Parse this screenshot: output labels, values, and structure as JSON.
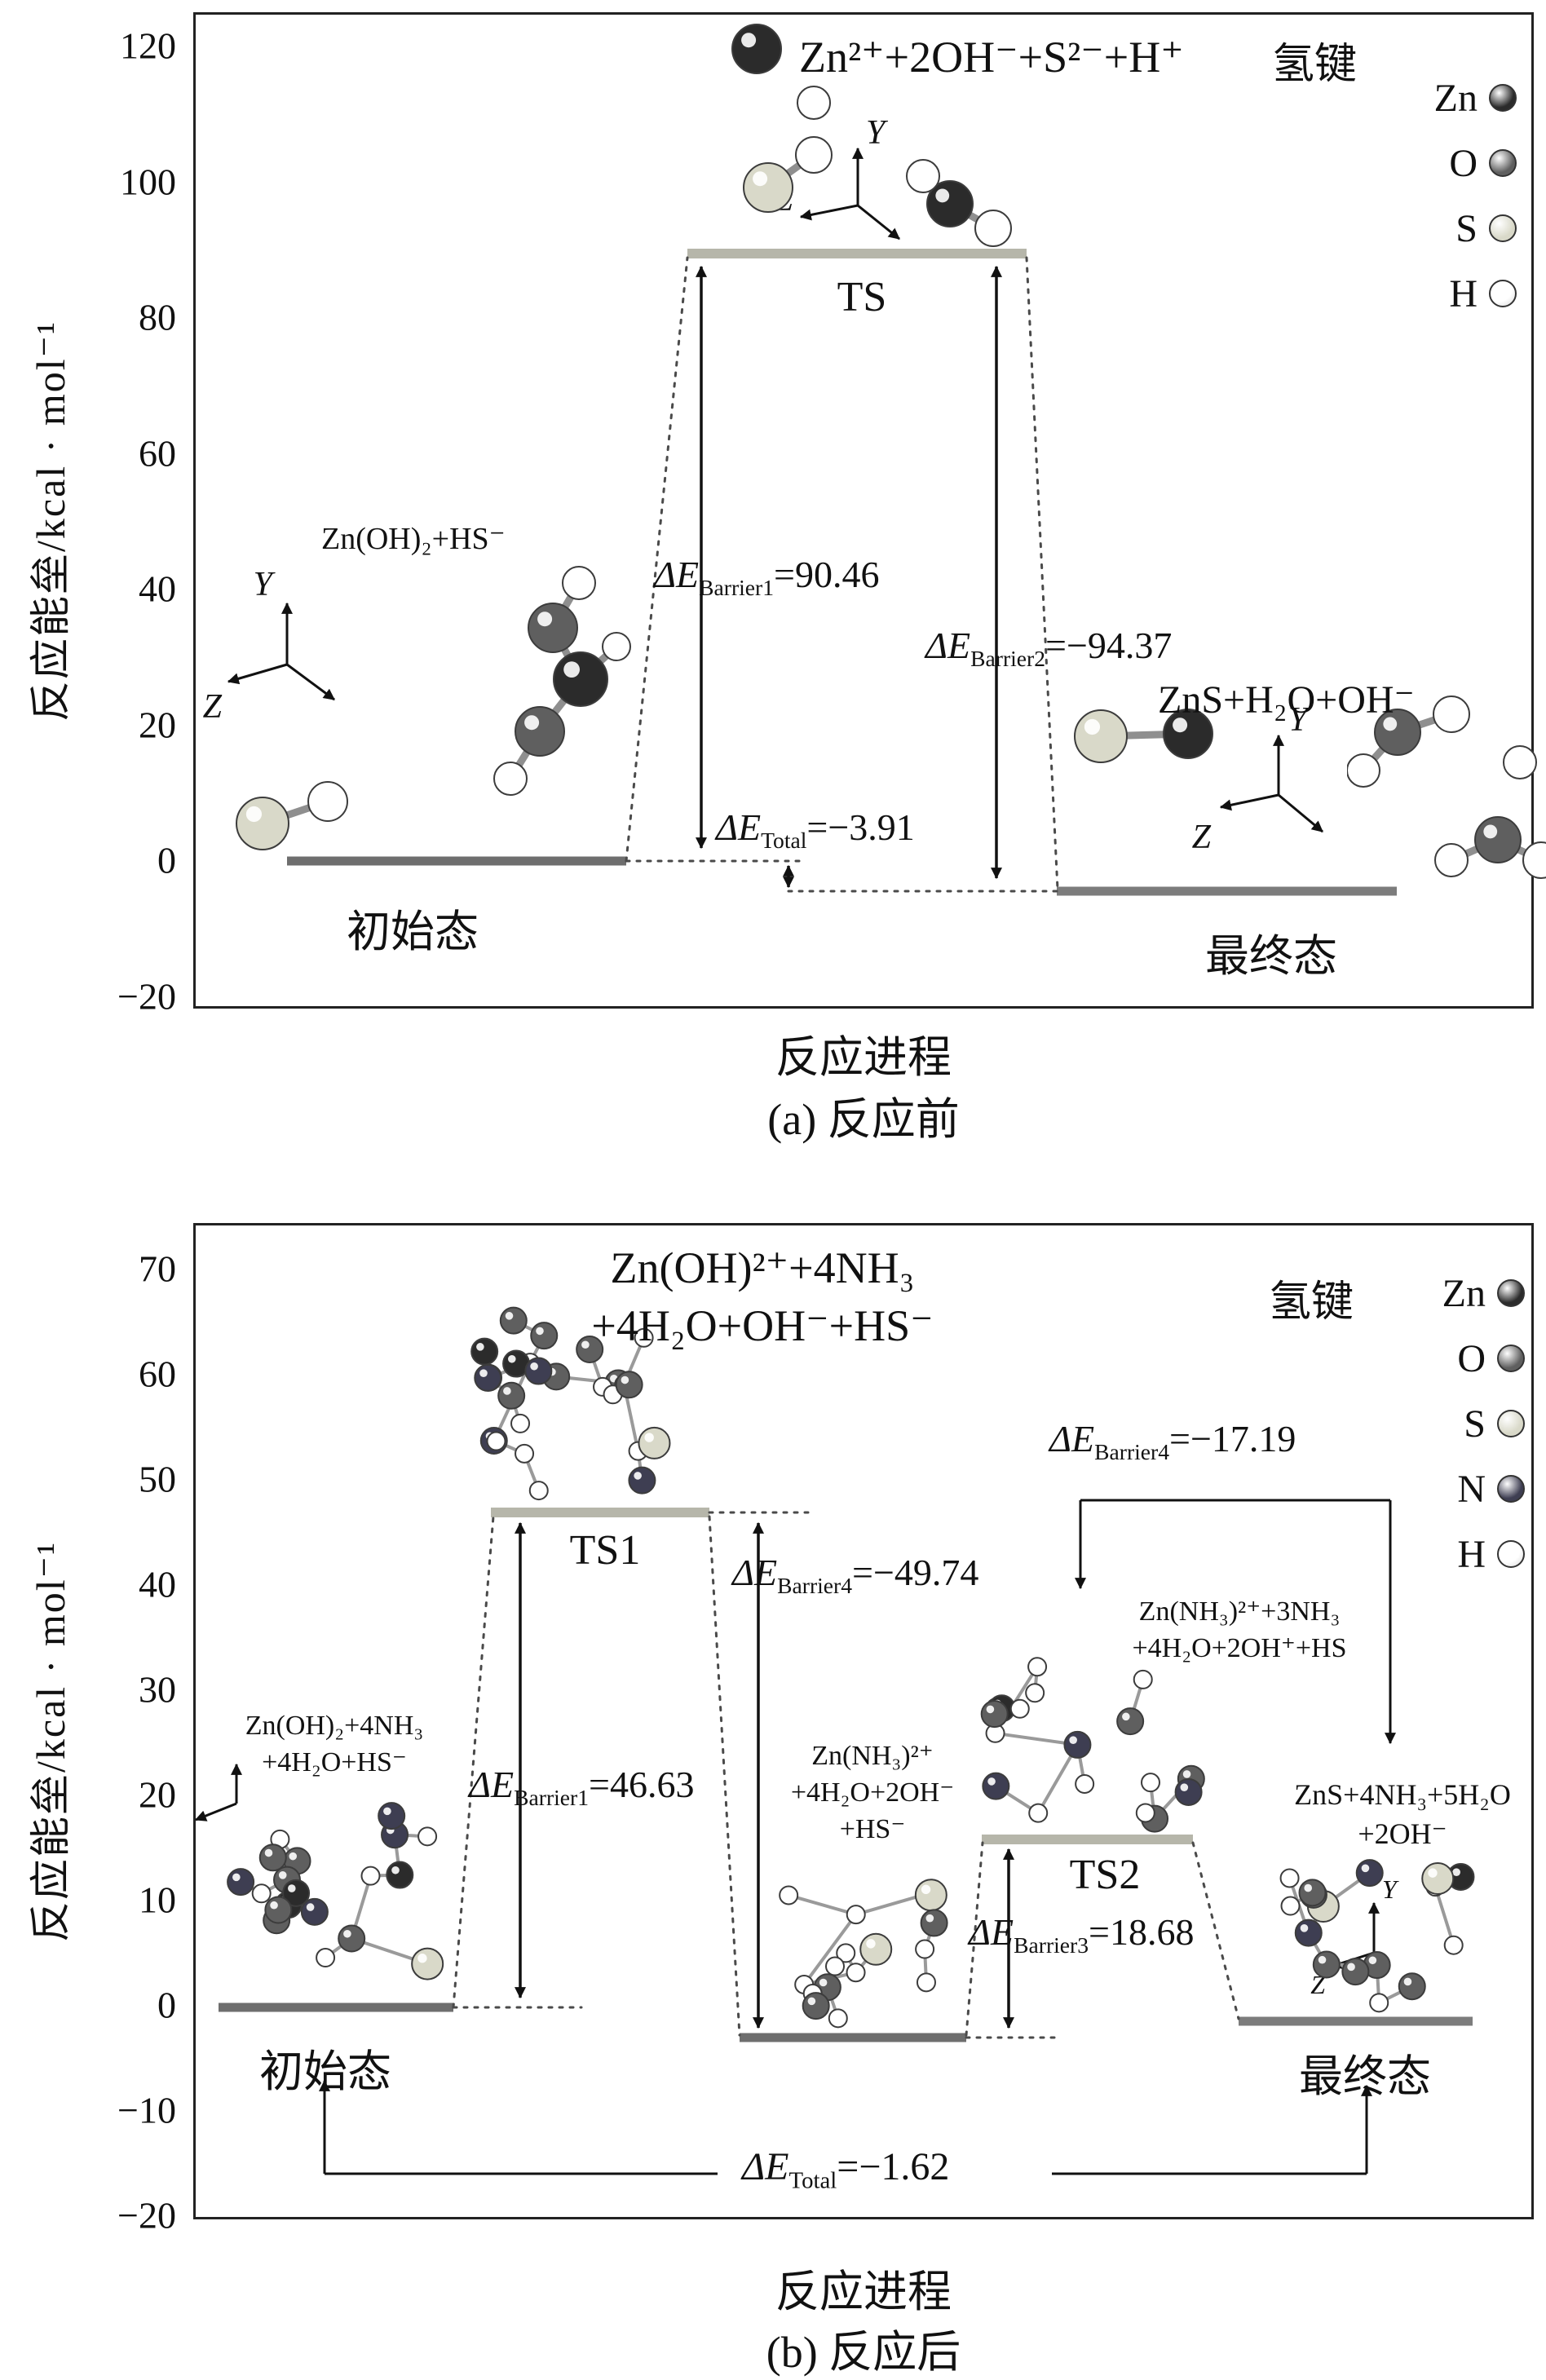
{
  "chart_data": [
    {
      "type": "line",
      "subtype": "reaction-energy-profile",
      "panel": "a",
      "caption": "(a) 反应前",
      "xlabel": "反应进程",
      "ylabel": "反应能垒/kcal · mol⁻¹",
      "ylim": [
        -20,
        120
      ],
      "yticks": [
        120,
        100,
        80,
        60,
        40,
        20,
        0,
        -20
      ],
      "grid": false,
      "legend": {
        "title": "氢键",
        "position": "top-right",
        "entries": [
          "Zn",
          "O",
          "S",
          "H"
        ]
      },
      "top_formula": "Zn²⁺+2OH⁻+S²⁻+H⁺",
      "states": [
        {
          "name": "初始态",
          "energy": 0,
          "species": "Zn(OH)₂+HS⁻"
        },
        {
          "name": "TS",
          "energy": 90.46
        },
        {
          "name": "最终态",
          "energy": -3.91,
          "species": "ZnS+H₂O+OH⁻"
        }
      ],
      "barriers": [
        {
          "pre": "ΔE",
          "sub": "Barrier1",
          "val": "=90.46",
          "value": 90.46
        },
        {
          "pre": "ΔE",
          "sub": "Barrier2",
          "val": "=−94.37",
          "value": -94.37
        },
        {
          "pre": "ΔE",
          "sub": "Total",
          "val": "=−3.91",
          "value": -3.91
        }
      ],
      "axes_glyph_labels": {
        "y": "Y",
        "z": "Z"
      }
    },
    {
      "type": "line",
      "subtype": "reaction-energy-profile",
      "panel": "b",
      "caption": "(b) 反应后",
      "xlabel": "反应进程",
      "ylabel": "反应能垒/kcal · mol⁻¹",
      "ylim": [
        -20,
        70
      ],
      "yticks": [
        70,
        60,
        50,
        40,
        30,
        20,
        10,
        0,
        -10,
        -20
      ],
      "grid": false,
      "legend": {
        "title": "氢键",
        "position": "top-right",
        "entries": [
          "Zn",
          "O",
          "S",
          "N",
          "H"
        ]
      },
      "top_formula_lines": [
        "Zn(OH)²⁺+4NH₃",
        "+4H₂O+OH⁻+HS⁻"
      ],
      "states": [
        {
          "name": "初始态",
          "energy": 0,
          "species_lines": [
            "Zn(OH)₂+4NH₃",
            "+4H₂O+HS⁻"
          ]
        },
        {
          "name": "TS1",
          "energy": 46.63
        },
        {
          "energy": -3.11,
          "species_lines": [
            "Zn(NH₃)²⁺",
            "+4H₂O+2OH⁻",
            "+HS⁻"
          ]
        },
        {
          "name": "TS2",
          "energy": 15.57,
          "species_lines": [
            "Zn(NH₃)²⁺+3NH₃",
            "+4H₂O+2OH⁺+HS"
          ]
        },
        {
          "name": "最终态",
          "energy": -1.62,
          "species_lines": [
            "ZnS+4NH₃+5H₂O",
            "+2OH⁻"
          ]
        }
      ],
      "barriers": [
        {
          "pre": "ΔE",
          "sub": "Barrier1",
          "val": "=46.63",
          "value": 46.63
        },
        {
          "pre": "ΔE",
          "sub": "Barrier4",
          "val": "=−49.74",
          "value": -49.74
        },
        {
          "pre": "ΔE",
          "sub": "Barrier3",
          "val": "=18.68",
          "value": 18.68
        },
        {
          "pre": "ΔE",
          "sub": "Barrier4",
          "val": "=−17.19",
          "value": -17.19
        },
        {
          "pre": "ΔE",
          "sub": "Total",
          "val": "=−1.62",
          "value": -1.62
        }
      ],
      "axes_glyph_labels": {
        "y": "Y",
        "z": "Z"
      }
    }
  ],
  "atom_colors": {
    "Zn": "#2b2b2b",
    "O": "#5f5f5f",
    "S": "#d9d9c9",
    "N": "#3e3e52",
    "H": "#ffffff"
  }
}
